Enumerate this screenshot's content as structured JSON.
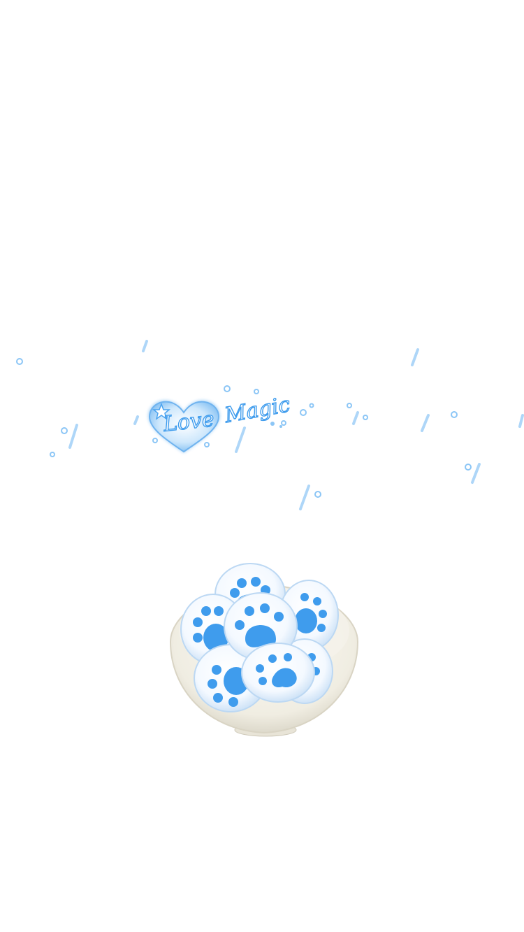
{
  "logo": {
    "love_text": "Love",
    "magic_text": "Magic"
  },
  "colors": {
    "background": "#ffffff",
    "accent_blue": "#4aa3f0",
    "light_blue": "#bfe0fb",
    "plate": "#f1efe6"
  },
  "icons": {
    "heart": "heart-icon",
    "star": "star-icon",
    "paw": "paw-print-icon",
    "plate": "plate-icon"
  }
}
